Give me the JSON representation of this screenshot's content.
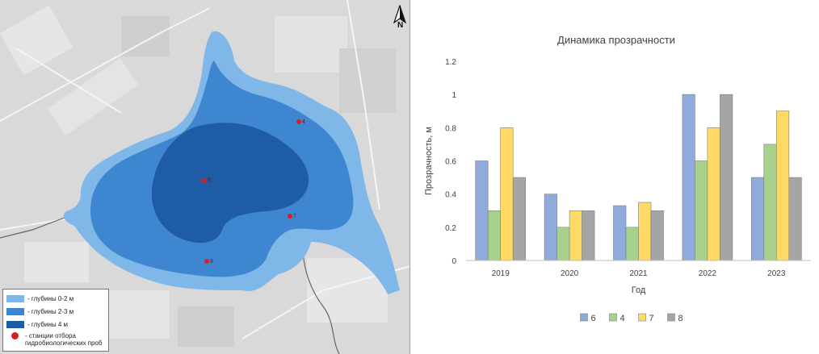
{
  "map": {
    "legend": [
      {
        "label": "- глубины 0-2 м",
        "color": "#7fb7e8"
      },
      {
        "label": "- глубины 2-3 м",
        "color": "#3f86d0"
      },
      {
        "label": "- глубины 4 м",
        "color": "#1e5da6"
      }
    ],
    "stations_label": "- станции отбора гидробиологических проб",
    "north_label": "N",
    "stations": [
      "6",
      "4",
      "7",
      "8"
    ]
  },
  "chart_data": {
    "type": "bar",
    "title": "Динамика прозрачности",
    "xlabel": "Год",
    "ylabel": "Прозрачность, м",
    "ylim": [
      0,
      1.2
    ],
    "yticks": [
      0,
      0.2,
      0.4,
      0.6,
      0.8,
      1,
      1.2
    ],
    "categories": [
      "2019",
      "2020",
      "2021",
      "2022",
      "2023"
    ],
    "series": [
      {
        "name": "6",
        "color": "#8faadc",
        "values": [
          0.6,
          0.4,
          0.33,
          1.0,
          0.5
        ]
      },
      {
        "name": "4",
        "color": "#a9d18e",
        "values": [
          0.3,
          0.2,
          0.2,
          0.6,
          0.7
        ]
      },
      {
        "name": "7",
        "color": "#ffd966",
        "values": [
          0.8,
          0.3,
          0.35,
          0.8,
          0.9
        ]
      },
      {
        "name": "8",
        "color": "#a5a5a5",
        "values": [
          0.5,
          0.3,
          0.3,
          1.0,
          0.5
        ]
      }
    ],
    "grid": false,
    "legend_position": "bottom"
  }
}
